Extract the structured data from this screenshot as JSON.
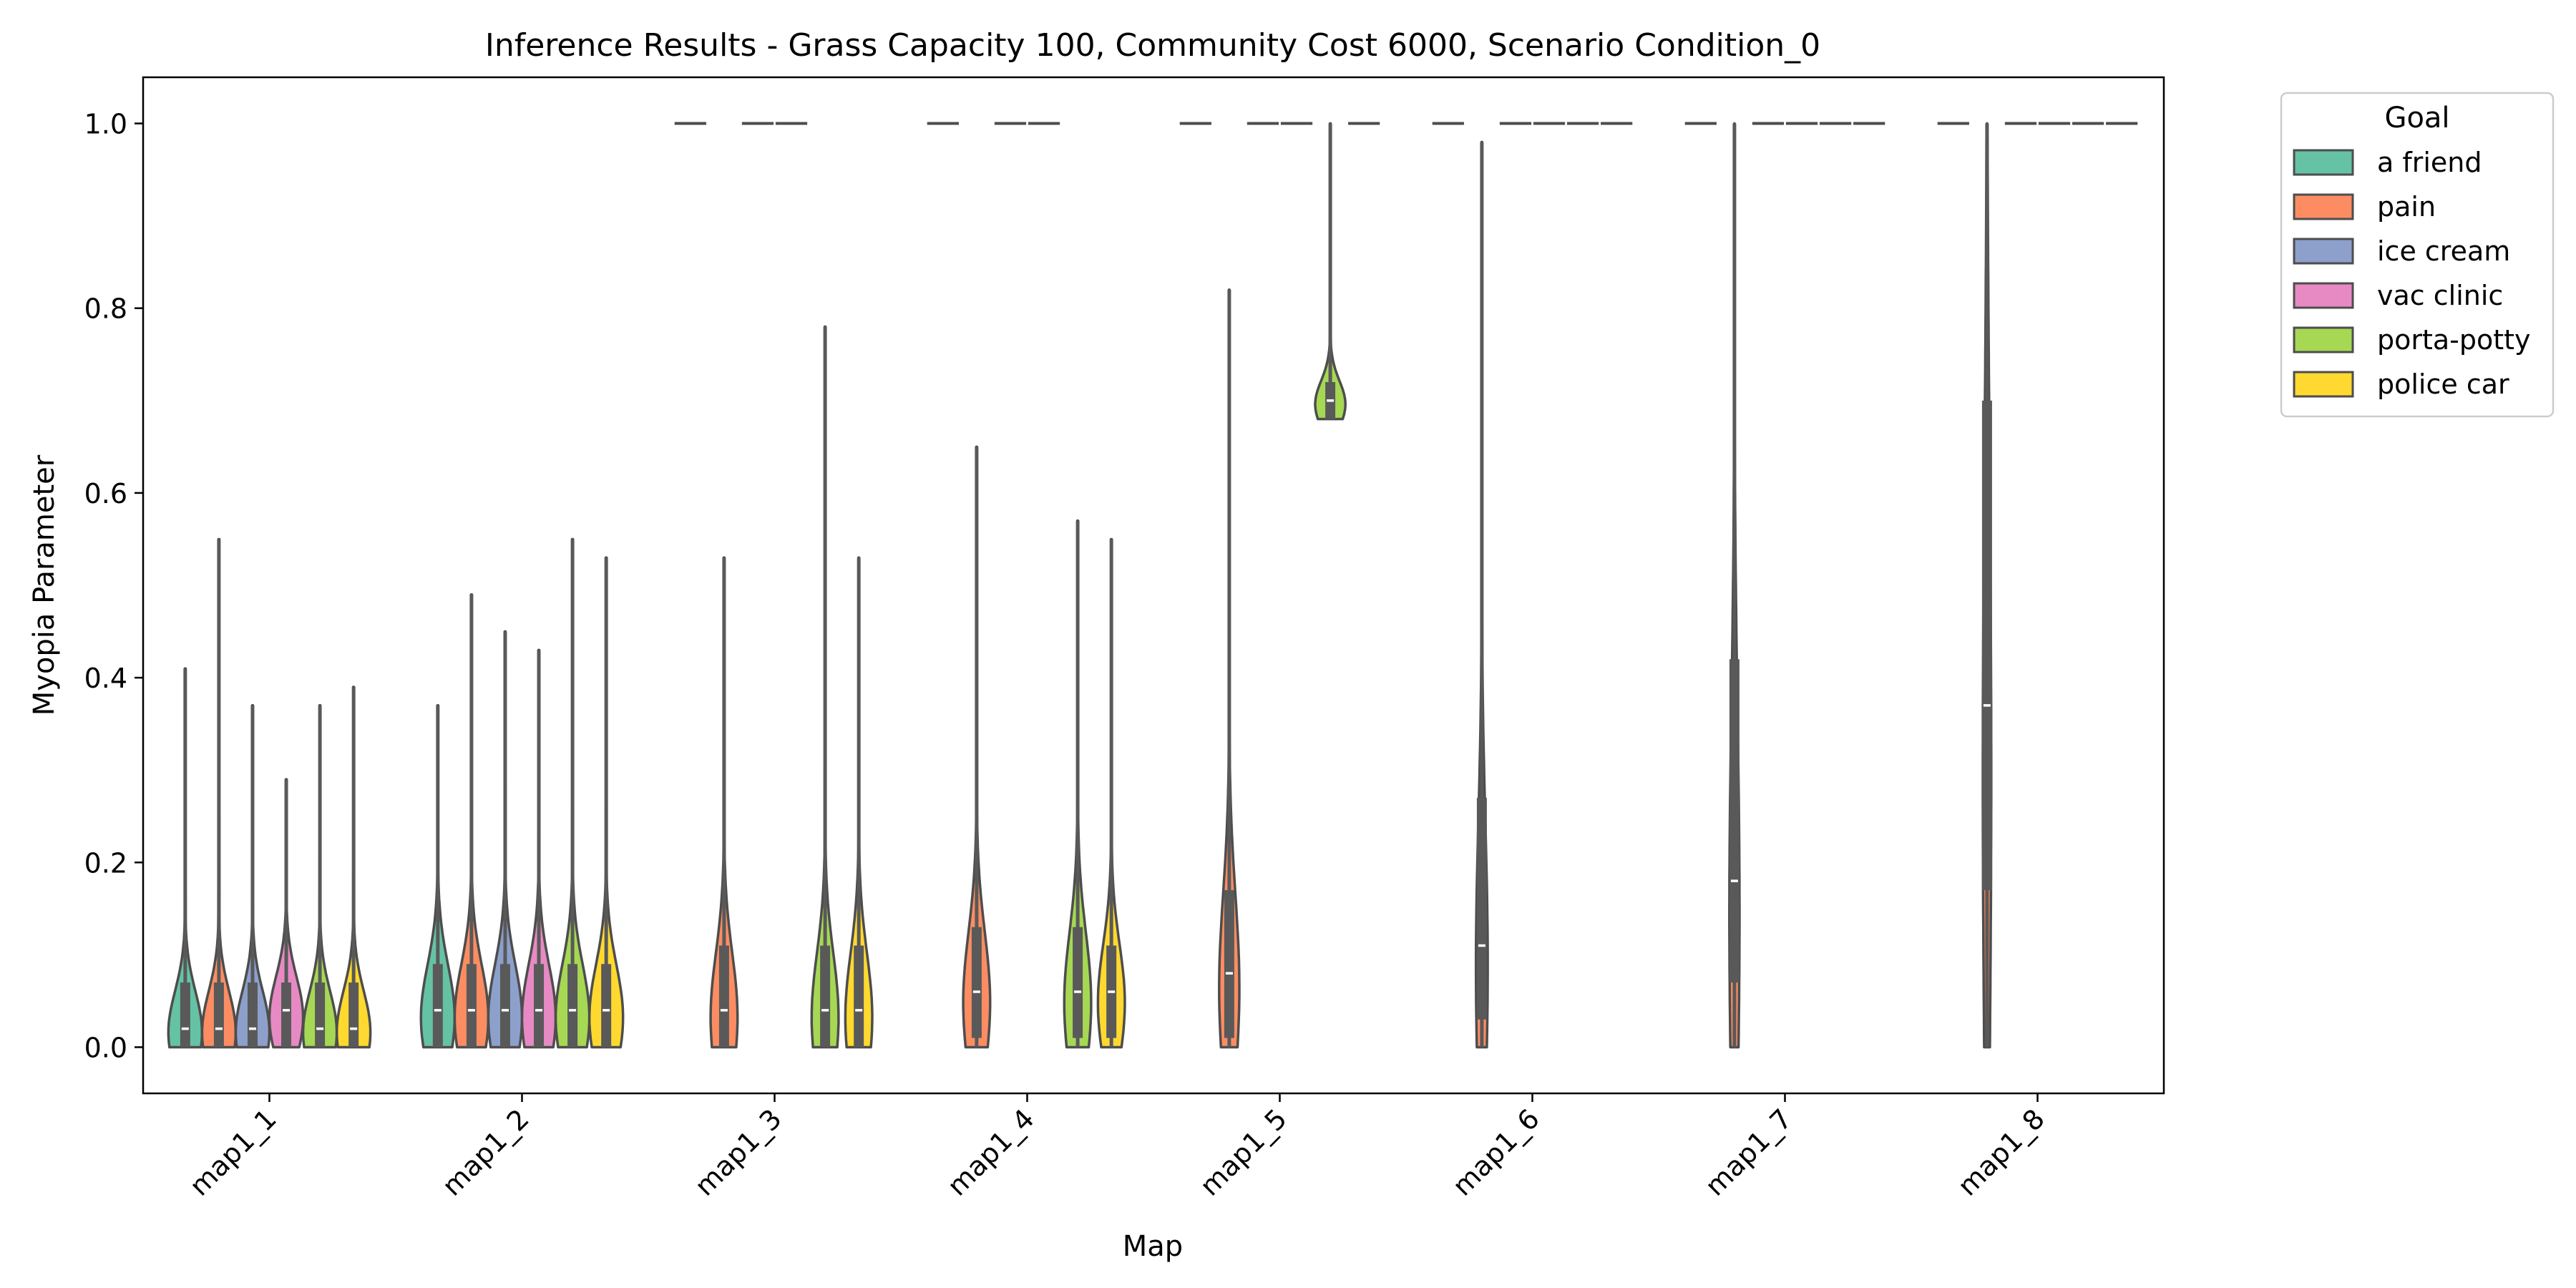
{
  "chart_data": {
    "type": "violin",
    "title": "Inference Results - Grass Capacity 100, Community Cost 6000, Scenario Condition_0",
    "xlabel": "Map",
    "ylabel": "Myopia Parameter",
    "ylim": [
      -0.05,
      1.05
    ],
    "yticks": [
      "0.0",
      "0.2",
      "0.4",
      "0.6",
      "0.8",
      "1.0"
    ],
    "categories": [
      "map1_1",
      "map1_2",
      "map1_3",
      "map1_4",
      "map1_5",
      "map1_6",
      "map1_7",
      "map1_8"
    ],
    "legend": {
      "title": "Goal",
      "placement": "outside-top-right",
      "entries": [
        "a friend",
        "pain",
        "ice cream",
        "vac clinic",
        "porta-potty",
        "police car"
      ]
    },
    "colors": {
      "a friend": "#66c2a5",
      "pain": "#fc8d62",
      "ice cream": "#8da0cb",
      "vac clinic": "#e78ac3",
      "porta-potty": "#a6d854",
      "police car": "#ffd92f",
      "outline": "#4d4d4d",
      "box": "#595959"
    },
    "series": [
      {
        "map": "map1_1",
        "goal": "a friend",
        "min": 0.0,
        "q1": 0.0,
        "median": 0.02,
        "q3": 0.07,
        "max": 0.41,
        "width": 1.0
      },
      {
        "map": "map1_1",
        "goal": "pain",
        "min": 0.0,
        "q1": 0.0,
        "median": 0.02,
        "q3": 0.07,
        "max": 0.55,
        "width": 1.0
      },
      {
        "map": "map1_1",
        "goal": "ice cream",
        "min": 0.0,
        "q1": 0.0,
        "median": 0.02,
        "q3": 0.07,
        "max": 0.37,
        "width": 1.0
      },
      {
        "map": "map1_1",
        "goal": "vac clinic",
        "min": 0.0,
        "q1": 0.0,
        "median": 0.04,
        "q3": 0.07,
        "max": 0.29,
        "width": 1.0
      },
      {
        "map": "map1_1",
        "goal": "porta-potty",
        "min": 0.0,
        "q1": 0.0,
        "median": 0.02,
        "q3": 0.07,
        "max": 0.37,
        "width": 1.0
      },
      {
        "map": "map1_1",
        "goal": "police car",
        "min": 0.0,
        "q1": 0.0,
        "median": 0.02,
        "q3": 0.07,
        "max": 0.39,
        "width": 1.0
      },
      {
        "map": "map1_2",
        "goal": "a friend",
        "min": 0.0,
        "q1": 0.0,
        "median": 0.04,
        "q3": 0.09,
        "max": 0.37,
        "width": 1.0
      },
      {
        "map": "map1_2",
        "goal": "pain",
        "min": 0.0,
        "q1": 0.0,
        "median": 0.04,
        "q3": 0.09,
        "max": 0.49,
        "width": 1.0
      },
      {
        "map": "map1_2",
        "goal": "ice cream",
        "min": 0.0,
        "q1": 0.0,
        "median": 0.04,
        "q3": 0.09,
        "max": 0.45,
        "width": 1.0
      },
      {
        "map": "map1_2",
        "goal": "vac clinic",
        "min": 0.0,
        "q1": 0.0,
        "median": 0.04,
        "q3": 0.09,
        "max": 0.43,
        "width": 1.0
      },
      {
        "map": "map1_2",
        "goal": "porta-potty",
        "min": 0.0,
        "q1": 0.0,
        "median": 0.04,
        "q3": 0.09,
        "max": 0.55,
        "width": 1.0
      },
      {
        "map": "map1_2",
        "goal": "police car",
        "min": 0.0,
        "q1": 0.0,
        "median": 0.04,
        "q3": 0.09,
        "max": 0.53,
        "width": 1.0
      },
      {
        "map": "map1_3",
        "goal": "a friend",
        "min": 1.0,
        "q1": 1.0,
        "median": 1.0,
        "q3": 1.0,
        "max": 1.0,
        "width": 0
      },
      {
        "map": "map1_3",
        "goal": "pain",
        "min": 0.0,
        "q1": 0.0,
        "median": 0.04,
        "q3": 0.11,
        "max": 0.53,
        "width": 0.8
      },
      {
        "map": "map1_3",
        "goal": "ice cream",
        "min": 1.0,
        "q1": 1.0,
        "median": 1.0,
        "q3": 1.0,
        "max": 1.0,
        "width": 0
      },
      {
        "map": "map1_3",
        "goal": "vac clinic",
        "min": 1.0,
        "q1": 1.0,
        "median": 1.0,
        "q3": 1.0,
        "max": 1.0,
        "width": 0
      },
      {
        "map": "map1_3",
        "goal": "porta-potty",
        "min": 0.0,
        "q1": 0.0,
        "median": 0.04,
        "q3": 0.11,
        "max": 0.78,
        "width": 0.8
      },
      {
        "map": "map1_3",
        "goal": "police car",
        "min": 0.0,
        "q1": 0.0,
        "median": 0.04,
        "q3": 0.11,
        "max": 0.53,
        "width": 0.8
      },
      {
        "map": "map1_4",
        "goal": "a friend",
        "min": 1.0,
        "q1": 1.0,
        "median": 1.0,
        "q3": 1.0,
        "max": 1.0,
        "width": 0
      },
      {
        "map": "map1_4",
        "goal": "pain",
        "min": 0.0,
        "q1": 0.01,
        "median": 0.06,
        "q3": 0.13,
        "max": 0.65,
        "width": 0.8
      },
      {
        "map": "map1_4",
        "goal": "ice cream",
        "min": 1.0,
        "q1": 1.0,
        "median": 1.0,
        "q3": 1.0,
        "max": 1.0,
        "width": 0
      },
      {
        "map": "map1_4",
        "goal": "vac clinic",
        "min": 1.0,
        "q1": 1.0,
        "median": 1.0,
        "q3": 1.0,
        "max": 1.0,
        "width": 0
      },
      {
        "map": "map1_4",
        "goal": "porta-potty",
        "min": 0.0,
        "q1": 0.01,
        "median": 0.06,
        "q3": 0.13,
        "max": 0.57,
        "width": 0.8
      },
      {
        "map": "map1_4",
        "goal": "police car",
        "min": 0.0,
        "q1": 0.01,
        "median": 0.06,
        "q3": 0.11,
        "max": 0.55,
        "width": 0.8
      },
      {
        "map": "map1_5",
        "goal": "a friend",
        "min": 1.0,
        "q1": 1.0,
        "median": 1.0,
        "q3": 1.0,
        "max": 1.0,
        "width": 0
      },
      {
        "map": "map1_5",
        "goal": "pain",
        "min": 0.0,
        "q1": 0.01,
        "median": 0.08,
        "q3": 0.17,
        "max": 0.82,
        "width": 0.6
      },
      {
        "map": "map1_5",
        "goal": "ice cream",
        "min": 1.0,
        "q1": 1.0,
        "median": 1.0,
        "q3": 1.0,
        "max": 1.0,
        "width": 0
      },
      {
        "map": "map1_5",
        "goal": "vac clinic",
        "min": 1.0,
        "q1": 1.0,
        "median": 1.0,
        "q3": 1.0,
        "max": 1.0,
        "width": 0
      },
      {
        "map": "map1_5",
        "goal": "porta-potty",
        "min": 0.68,
        "q1": 0.68,
        "median": 0.7,
        "q3": 0.72,
        "max": 1.0,
        "width": 0.9
      },
      {
        "map": "map1_5",
        "goal": "police car",
        "min": 1.0,
        "q1": 1.0,
        "median": 1.0,
        "q3": 1.0,
        "max": 1.0,
        "width": 0
      },
      {
        "map": "map1_6",
        "goal": "a friend",
        "min": 1.0,
        "q1": 1.0,
        "median": 1.0,
        "q3": 1.0,
        "max": 1.0,
        "width": 0
      },
      {
        "map": "map1_6",
        "goal": "pain",
        "min": 0.0,
        "q1": 0.03,
        "median": 0.11,
        "q3": 0.27,
        "max": 0.98,
        "width": 0.35
      },
      {
        "map": "map1_6",
        "goal": "ice cream",
        "min": 1.0,
        "q1": 1.0,
        "median": 1.0,
        "q3": 1.0,
        "max": 1.0,
        "width": 0
      },
      {
        "map": "map1_6",
        "goal": "vac clinic",
        "min": 1.0,
        "q1": 1.0,
        "median": 1.0,
        "q3": 1.0,
        "max": 1.0,
        "width": 0
      },
      {
        "map": "map1_6",
        "goal": "porta-potty",
        "min": 1.0,
        "q1": 1.0,
        "median": 1.0,
        "q3": 1.0,
        "max": 1.0,
        "width": 0
      },
      {
        "map": "map1_6",
        "goal": "police car",
        "min": 1.0,
        "q1": 1.0,
        "median": 1.0,
        "q3": 1.0,
        "max": 1.0,
        "width": 0
      },
      {
        "map": "map1_7",
        "goal": "a friend",
        "min": 1.0,
        "q1": 1.0,
        "median": 1.0,
        "q3": 1.0,
        "max": 1.0,
        "width": 0
      },
      {
        "map": "map1_7",
        "goal": "pain",
        "min": 0.0,
        "q1": 0.07,
        "median": 0.18,
        "q3": 0.42,
        "max": 1.0,
        "width": 0.3
      },
      {
        "map": "map1_7",
        "goal": "ice cream",
        "min": 1.0,
        "q1": 1.0,
        "median": 1.0,
        "q3": 1.0,
        "max": 1.0,
        "width": 0
      },
      {
        "map": "map1_7",
        "goal": "vac clinic",
        "min": 1.0,
        "q1": 1.0,
        "median": 1.0,
        "q3": 1.0,
        "max": 1.0,
        "width": 0
      },
      {
        "map": "map1_7",
        "goal": "porta-potty",
        "min": 1.0,
        "q1": 1.0,
        "median": 1.0,
        "q3": 1.0,
        "max": 1.0,
        "width": 0
      },
      {
        "map": "map1_7",
        "goal": "police car",
        "min": 1.0,
        "q1": 1.0,
        "median": 1.0,
        "q3": 1.0,
        "max": 1.0,
        "width": 0
      },
      {
        "map": "map1_8",
        "goal": "a friend",
        "min": 1.0,
        "q1": 1.0,
        "median": 1.0,
        "q3": 1.0,
        "max": 1.0,
        "width": 0
      },
      {
        "map": "map1_8",
        "goal": "pain",
        "min": 0.0,
        "q1": 0.17,
        "median": 0.37,
        "q3": 0.7,
        "max": 1.0,
        "width": 0.25
      },
      {
        "map": "map1_8",
        "goal": "ice cream",
        "min": 1.0,
        "q1": 1.0,
        "median": 1.0,
        "q3": 1.0,
        "max": 1.0,
        "width": 0
      },
      {
        "map": "map1_8",
        "goal": "vac clinic",
        "min": 1.0,
        "q1": 1.0,
        "median": 1.0,
        "q3": 1.0,
        "max": 1.0,
        "width": 0
      },
      {
        "map": "map1_8",
        "goal": "porta-potty",
        "min": 1.0,
        "q1": 1.0,
        "median": 1.0,
        "q3": 1.0,
        "max": 1.0,
        "width": 0
      },
      {
        "map": "map1_8",
        "goal": "police car",
        "min": 1.0,
        "q1": 1.0,
        "median": 1.0,
        "q3": 1.0,
        "max": 1.0,
        "width": 0
      }
    ]
  }
}
